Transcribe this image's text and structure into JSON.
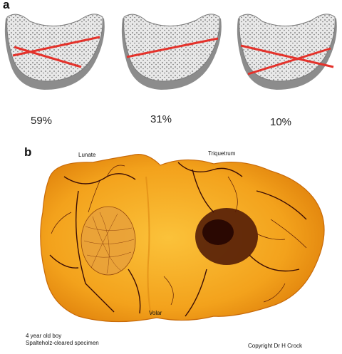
{
  "panel_a": {
    "letter": "a",
    "bones": [
      {
        "percent": "59%"
      },
      {
        "percent": "31%"
      },
      {
        "percent": "10%"
      }
    ]
  },
  "panel_b": {
    "letter": "b",
    "labels": {
      "lunate": "Lunate",
      "triquetrum": "Triquetrum",
      "volar": "Volar"
    },
    "caption_line1": "4 year old boy",
    "caption_line2": "Spalteholz-cleared specimen",
    "copyright": "Copyright Dr H Crock"
  },
  "colors": {
    "bone_gray": "#c8c8c8",
    "line_red": "#e4322b",
    "specimen_orange": "#f5a623",
    "vessel_dark": "#3b0d05"
  }
}
